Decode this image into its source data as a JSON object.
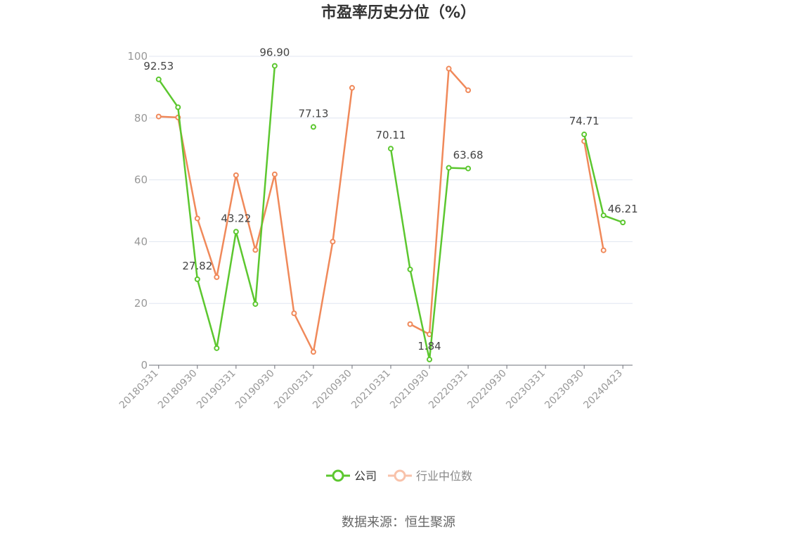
{
  "chart_data": {
    "type": "line",
    "title": "市盈率历史分位（%）",
    "source": "数据来源：恒生聚源",
    "ylim": [
      0,
      100
    ],
    "yticks": [
      "0",
      "20",
      "40",
      "60",
      "80",
      "100"
    ],
    "x": [
      "20180331",
      "20180630",
      "20180930",
      "20181231",
      "20190331",
      "20190630",
      "20190930",
      "20191231",
      "20200331",
      "20200630",
      "20200930",
      "20201231",
      "20210331",
      "20210630",
      "20210930",
      "20211231",
      "20220331",
      "20220630",
      "20220930",
      "20221231",
      "20230331",
      "20230630",
      "20230930",
      "20231231",
      "20240423"
    ],
    "xtick_labels": [
      "20180331",
      "20180930",
      "20190331",
      "20190930",
      "20200331",
      "20200930",
      "20210331",
      "20210930",
      "20220331",
      "20220930",
      "20230331",
      "20230930",
      "20240423"
    ],
    "series": [
      {
        "name": "公司",
        "color": "#5cc72f",
        "values": [
          92.53,
          83.5,
          27.82,
          5.5,
          43.22,
          19.8,
          96.9,
          null,
          77.13,
          null,
          null,
          null,
          70.11,
          31.0,
          1.84,
          63.9,
          63.68,
          null,
          null,
          null,
          null,
          null,
          74.71,
          48.5,
          46.21
        ],
        "labels": [
          "92.53",
          null,
          "27.82",
          null,
          "43.22",
          null,
          "96.90",
          null,
          "77.13",
          null,
          null,
          null,
          "70.11",
          null,
          "1.84",
          null,
          "63.68",
          null,
          null,
          null,
          null,
          null,
          "74.71",
          null,
          "46.21"
        ]
      },
      {
        "name": "行业中位数",
        "color": "#f0895a",
        "values": [
          80.5,
          80.2,
          47.5,
          28.5,
          61.5,
          37.3,
          61.8,
          16.8,
          4.3,
          40.0,
          89.8,
          null,
          null,
          13.3,
          10.0,
          96.0,
          89.0,
          null,
          null,
          null,
          null,
          null,
          72.5,
          37.2,
          null
        ]
      }
    ],
    "legend_position": "bottom",
    "grid": true
  }
}
